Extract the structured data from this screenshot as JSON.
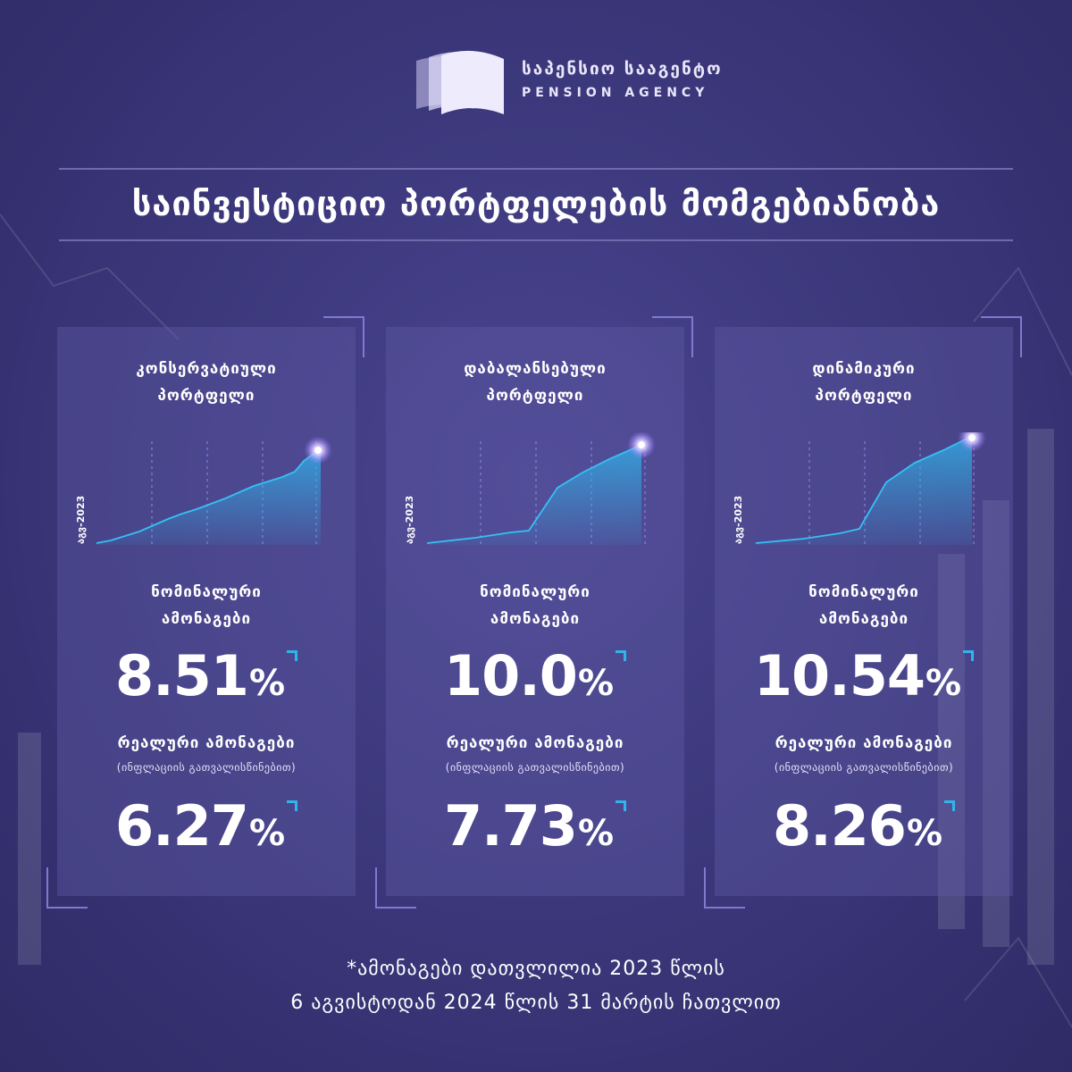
{
  "logo": {
    "name_ka": "საპენსიო სააგენტო",
    "name_en": "PENSION AGENCY"
  },
  "title": "საინვესტიციო პორტფელების მომგებიანობა",
  "colors": {
    "background": "#3a3679",
    "card": "#5a559f",
    "accent": "#2fb5ec",
    "text": "#ffffff"
  },
  "cards": [
    {
      "title_line1": "კონსერვატიული",
      "title_line2": "პორტფელი",
      "axis_label": "აგვ-2023",
      "nominal_label_line1": "ნომინალური",
      "nominal_label_line2": "ამონაგები",
      "nominal_value": "8.51",
      "real_label": "რეალური ამონაგები",
      "real_note": "(ინფლაციის გათვალისწინებით)",
      "real_value": "6.27",
      "percent": "%"
    },
    {
      "title_line1": "დაბალანსებული",
      "title_line2": "პორტფელი",
      "axis_label": "აგვ-2023",
      "nominal_label_line1": "ნომინალური",
      "nominal_label_line2": "ამონაგები",
      "nominal_value": "10.0",
      "real_label": "რეალური ამონაგები",
      "real_note": "(ინფლაციის გათვალისწინებით)",
      "real_value": "7.73",
      "percent": "%"
    },
    {
      "title_line1": "დინამიკური",
      "title_line2": "პორტფელი",
      "axis_label": "აგვ-2023",
      "nominal_label_line1": "ნომინალური",
      "nominal_label_line2": "ამონაგები",
      "nominal_value": "10.54",
      "real_label": "რეალური ამონაგები",
      "real_note": "(ინფლაციის გათვალისწინებით)",
      "real_value": "8.26",
      "percent": "%"
    }
  ],
  "footnote": {
    "line1": "*ამონაგები დათვლილია 2023 წლის",
    "line2": "6 აგვისტოდან 2024 წლის 31 მარტის ჩათვლით"
  }
}
